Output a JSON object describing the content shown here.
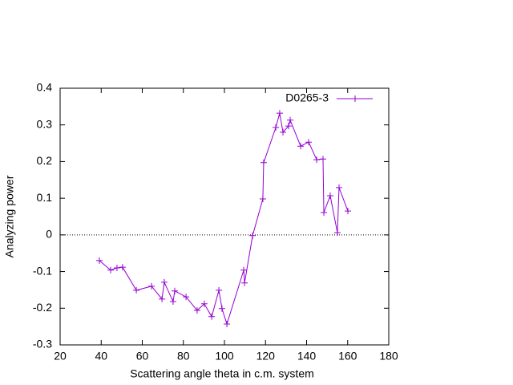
{
  "chart_data": {
    "type": "line",
    "xlabel": "Scattering angle theta in c.m. system",
    "ylabel": "Analyzing power",
    "xlim": [
      20,
      180
    ],
    "xticks": [
      20,
      40,
      60,
      80,
      100,
      120,
      140,
      160,
      180
    ],
    "ylim": [
      -0.3,
      0.4
    ],
    "yticks": [
      -0.3,
      -0.2,
      -0.1,
      0,
      0.1,
      0.2,
      0.3,
      0.4
    ],
    "zero_line": true,
    "legend": "top-right",
    "series": [
      {
        "name": "D0265-3",
        "color": "#9400d3",
        "x": [
          39.1,
          44.6,
          47.7,
          50.4,
          57.1,
          64.5,
          69.6,
          70.7,
          75.0,
          75.8,
          81.3,
          86.7,
          90.2,
          93.8,
          97.3,
          98.8,
          101.2,
          109.4,
          109.8,
          113.7,
          118.7,
          119.1,
          125.0,
          126.9,
          128.5,
          131.2,
          132.0,
          137.1,
          141.0,
          144.9,
          148.0,
          148.4,
          151.5,
          155.0,
          155.8,
          160.1
        ],
        "values": [
          -0.07,
          -0.096,
          -0.09,
          -0.088,
          -0.151,
          -0.14,
          -0.175,
          -0.129,
          -0.182,
          -0.153,
          -0.169,
          -0.206,
          -0.188,
          -0.223,
          -0.151,
          -0.201,
          -0.243,
          -0.096,
          -0.131,
          -0.002,
          0.098,
          0.197,
          0.293,
          0.332,
          0.28,
          0.297,
          0.313,
          0.242,
          0.253,
          0.205,
          0.207,
          0.061,
          0.107,
          0.006,
          0.129,
          0.065
        ]
      }
    ]
  }
}
